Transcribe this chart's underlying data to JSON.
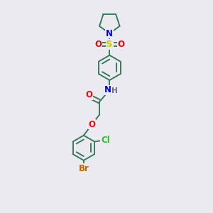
{
  "background_color": "#eaeaf0",
  "bond_color": "#3a7a5a",
  "bond_width": 1.4,
  "atom_colors": {
    "N": "#0000ee",
    "O": "#ff0000",
    "S": "#cccc00",
    "Cl": "#33bb33",
    "Br": "#bb6600",
    "C": "#3a7a5a",
    "H": "#666688"
  },
  "font_size_atoms": 8.5
}
